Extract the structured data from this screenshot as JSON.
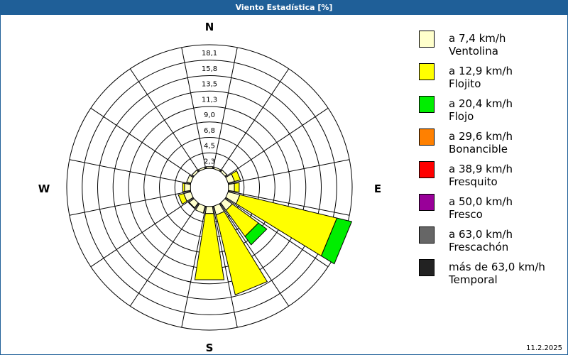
{
  "window": {
    "title": "Viento Estadística [%]"
  },
  "date": "11.2.2025",
  "chart_data": {
    "type": "wind-rose",
    "unit": "%",
    "max": 20.3,
    "ring_labels": [
      "2,3",
      "4,5",
      "6,8",
      "9,0",
      "11,3",
      "13,5",
      "15,8",
      "18,1"
    ],
    "directions": [
      "N",
      "E",
      "S",
      "W"
    ],
    "sector_count": 16,
    "sectors": [
      {
        "direction": "N",
        "angle": 0,
        "values": [
          0.3,
          0,
          0,
          0,
          0,
          0,
          0,
          0
        ]
      },
      {
        "direction": "NNE",
        "angle": 22.5,
        "values": [
          0.3,
          0,
          0,
          0,
          0,
          0,
          0,
          0
        ]
      },
      {
        "direction": "NE",
        "angle": 45,
        "values": [
          0.4,
          0,
          0,
          0,
          0,
          0,
          0,
          0
        ]
      },
      {
        "direction": "ENE",
        "angle": 67.5,
        "values": [
          1.1,
          1.0,
          0,
          0,
          0,
          0,
          0,
          0
        ]
      },
      {
        "direction": "E",
        "angle": 90,
        "values": [
          1.0,
          0.8,
          0,
          0,
          0,
          0,
          0,
          0
        ]
      },
      {
        "direction": "ESE",
        "angle": 112.5,
        "values": [
          2.0,
          16.4,
          2.5,
          0,
          0,
          0,
          0,
          0
        ]
      },
      {
        "direction": "SE",
        "angle": 135,
        "values": [
          1.5,
          5.3,
          1.7,
          0,
          0,
          0,
          0,
          0
        ]
      },
      {
        "direction": "SSE",
        "angle": 157.5,
        "values": [
          1.5,
          13.5,
          0,
          0,
          0,
          0,
          0,
          0
        ]
      },
      {
        "direction": "S",
        "angle": 180,
        "values": [
          1.2,
          11.0,
          0,
          0,
          0,
          0,
          0,
          0
        ]
      },
      {
        "direction": "SSW",
        "angle": 202.5,
        "values": [
          1.2,
          0,
          0,
          0,
          0,
          0,
          0,
          0
        ]
      },
      {
        "direction": "SW",
        "angle": 225,
        "values": [
          1.0,
          0.1,
          0,
          0,
          0,
          0,
          0,
          0
        ]
      },
      {
        "direction": "WSW",
        "angle": 247.5,
        "values": [
          1.2,
          0.9,
          0,
          0,
          0,
          0,
          0,
          0
        ]
      },
      {
        "direction": "W",
        "angle": 270,
        "values": [
          1.0,
          0.3,
          0,
          0,
          0,
          0,
          0,
          0
        ]
      },
      {
        "direction": "WNW",
        "angle": 292.5,
        "values": [
          0.7,
          0,
          0,
          0,
          0,
          0,
          0,
          0
        ]
      },
      {
        "direction": "NW",
        "angle": 315,
        "values": [
          0.4,
          0,
          0,
          0,
          0,
          0,
          0,
          0
        ]
      },
      {
        "direction": "NNW",
        "angle": 337.5,
        "values": [
          0.3,
          0,
          0,
          0,
          0,
          0,
          0,
          0
        ]
      }
    ],
    "legend": [
      {
        "speed": "a 7,4 km/h",
        "name": "Ventolina",
        "color": "#ffffcc"
      },
      {
        "speed": "a 12,9 km/h",
        "name": "Flojito",
        "color": "#ffff00"
      },
      {
        "speed": "a 20,4 km/h",
        "name": "Flojo",
        "color": "#00ee00"
      },
      {
        "speed": "a 29,6 km/h",
        "name": "Bonancible",
        "color": "#ff8000"
      },
      {
        "speed": "a 38,9 km/h",
        "name": "Fresquito",
        "color": "#ff0000"
      },
      {
        "speed": "a 50,0 km/h",
        "name": "Fresco",
        "color": "#990099"
      },
      {
        "speed": "a 63,0 km/h",
        "name": "Frescachón",
        "color": "#666666"
      },
      {
        "speed": "más de 63,0 km/h",
        "name": "Temporal",
        "color": "#222222"
      }
    ]
  }
}
